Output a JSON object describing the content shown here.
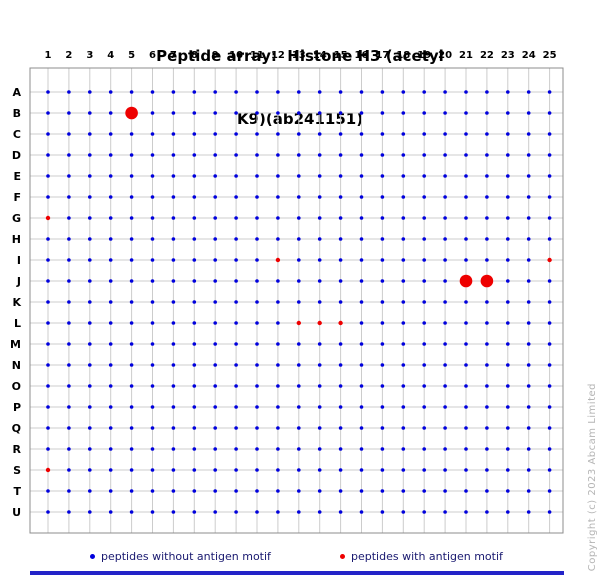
{
  "title": {
    "line1": "Peptide array:  Histone H3 (acetyl",
    "line2": "K9)(ab241151)"
  },
  "legend": {
    "items": [
      {
        "label": "peptides without antigen motif",
        "color": "#0000dd"
      },
      {
        "label": "peptides with antigen motif",
        "color": "#ee0000"
      }
    ]
  },
  "copyright": "Copyright (c) 2023 Abcam Limited",
  "footer_bar_color": "#2323c8",
  "chart_data": {
    "type": "scatter",
    "title": "Peptide array: Histone H3 (acetyl K9)(ab241151)",
    "columns": [
      1,
      2,
      3,
      4,
      5,
      6,
      7,
      8,
      9,
      10,
      11,
      12,
      13,
      14,
      15,
      16,
      17,
      18,
      19,
      20,
      21,
      22,
      23,
      24,
      25
    ],
    "rows": [
      "A",
      "B",
      "C",
      "D",
      "E",
      "F",
      "G",
      "H",
      "I",
      "J",
      "K",
      "L",
      "M",
      "N",
      "O",
      "P",
      "Q",
      "R",
      "S",
      "T",
      "U"
    ],
    "grid": true,
    "grid_color": "#cccccc",
    "box_color": "#8c8c8c",
    "dot_colors": {
      "blue": "#0000dd",
      "red": "#ee0000"
    },
    "default_dot_color": "blue",
    "small_red_dots": [
      [
        "G",
        1
      ],
      [
        "I",
        12
      ],
      [
        "I",
        25
      ],
      [
        "L",
        13
      ],
      [
        "L",
        14
      ],
      [
        "L",
        15
      ],
      [
        "S",
        1
      ]
    ],
    "large_red_dots": [
      [
        "B",
        5
      ],
      [
        "J",
        21
      ],
      [
        "J",
        22
      ]
    ],
    "red_row_labels": [
      "U"
    ],
    "legend_entries": [
      "peptides without antigen motif",
      "peptides with antigen motif"
    ],
    "legend_position": "bottom"
  }
}
